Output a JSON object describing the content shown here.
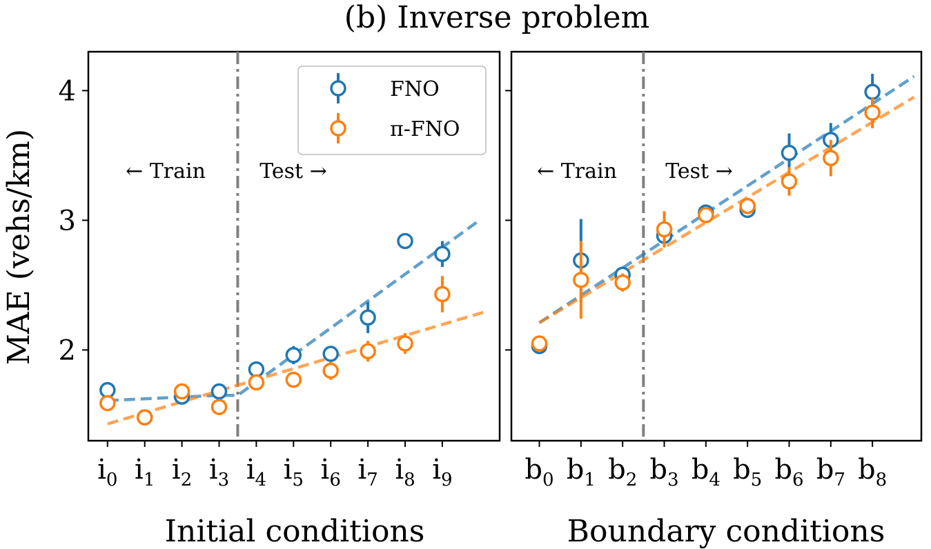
{
  "title": "(b) Inverse problem",
  "ylabel": "MAE (vehs/km)",
  "colors": {
    "FNO": "#1f77b4",
    "pi_FNO": "#ff7f0e",
    "divider": "#808080"
  },
  "legend": {
    "items": [
      "FNO",
      "π-FNO"
    ],
    "position": "top-right of left panel"
  },
  "chart_data": [
    {
      "type": "scatter",
      "panel": "left",
      "xlabel": "Initial conditions",
      "categories": [
        {
          "base": "i",
          "sub": "0"
        },
        {
          "base": "i",
          "sub": "1"
        },
        {
          "base": "i",
          "sub": "2"
        },
        {
          "base": "i",
          "sub": "3"
        },
        {
          "base": "i",
          "sub": "4"
        },
        {
          "base": "i",
          "sub": "5"
        },
        {
          "base": "i",
          "sub": "6"
        },
        {
          "base": "i",
          "sub": "7"
        },
        {
          "base": "i",
          "sub": "8"
        },
        {
          "base": "i",
          "sub": "9"
        }
      ],
      "ylim": [
        1.3,
        4.3
      ],
      "yticks": [
        2,
        3,
        4
      ],
      "train_test_split": 3.5,
      "annotations": {
        "train": "← Train",
        "test": "Test →"
      },
      "series": [
        {
          "name": "FNO",
          "values": [
            1.69,
            1.48,
            1.64,
            1.68,
            1.85,
            1.96,
            1.97,
            2.25,
            2.84,
            2.74
          ],
          "errors": [
            0.04,
            0.03,
            0.05,
            0.03,
            0.06,
            0.07,
            0.06,
            0.12,
            0.06,
            0.1
          ],
          "trend": [
            [
              0,
              1.61
            ],
            [
              3,
              1.65
            ],
            [
              3.5,
              1.65
            ],
            [
              10,
              3.0
            ]
          ]
        },
        {
          "name": "π-FNO",
          "values": [
            1.59,
            1.48,
            1.68,
            1.56,
            1.75,
            1.77,
            1.84,
            1.99,
            2.05,
            2.43
          ],
          "errors": [
            0.05,
            0.03,
            0.05,
            0.04,
            0.04,
            0.04,
            0.07,
            0.08,
            0.08,
            0.14
          ],
          "trend": [
            [
              0,
              1.43
            ],
            [
              10.1,
              2.29
            ]
          ]
        }
      ]
    },
    {
      "type": "scatter",
      "panel": "right",
      "xlabel": "Boundary conditions",
      "categories": [
        {
          "base": "b",
          "sub": "0"
        },
        {
          "base": "b",
          "sub": "1"
        },
        {
          "base": "b",
          "sub": "2"
        },
        {
          "base": "b",
          "sub": "3"
        },
        {
          "base": "b",
          "sub": "4"
        },
        {
          "base": "b",
          "sub": "5"
        },
        {
          "base": "b",
          "sub": "6"
        },
        {
          "base": "b",
          "sub": "7"
        },
        {
          "base": "b",
          "sub": "8"
        }
      ],
      "ylim": [
        1.3,
        4.3
      ],
      "yticks": [
        2,
        3,
        4
      ],
      "train_test_split": 2.5,
      "annotations": {
        "train": "← Train",
        "test": "Test →"
      },
      "series": [
        {
          "name": "FNO",
          "values": [
            2.03,
            2.69,
            2.58,
            2.88,
            3.06,
            3.08,
            3.52,
            3.62,
            3.99
          ],
          "errors": [
            0.05,
            0.32,
            0.05,
            0.08,
            0.06,
            0.05,
            0.15,
            0.13,
            0.14
          ],
          "trend": [
            [
              0,
              2.21
            ],
            [
              9,
              4.11
            ]
          ]
        },
        {
          "name": "π-FNO",
          "values": [
            2.05,
            2.54,
            2.52,
            2.93,
            3.04,
            3.11,
            3.3,
            3.48,
            3.83
          ],
          "errors": [
            0.06,
            0.3,
            0.07,
            0.14,
            0.05,
            0.05,
            0.11,
            0.14,
            0.12
          ],
          "trend": [
            [
              0,
              2.21
            ],
            [
              9,
              3.95
            ]
          ]
        }
      ]
    }
  ]
}
